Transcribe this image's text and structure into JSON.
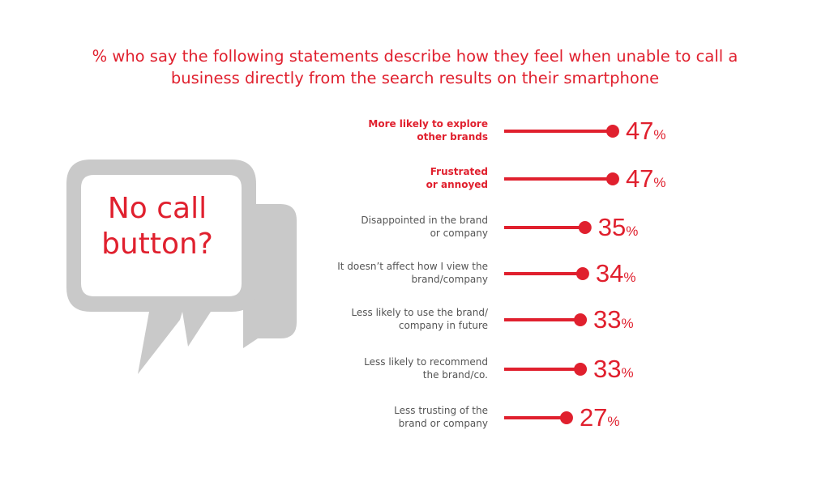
{
  "colors": {
    "accent": "#e0202e",
    "bubble": "#c9c9c9",
    "label": "#555555"
  },
  "title": {
    "line1": "% who say the following statements describe how they feel when unable to call a",
    "line2": "business directly from the search results on their smartphone"
  },
  "bubble": {
    "line1": "No call",
    "line2": "button?"
  },
  "chart_data": {
    "type": "bar",
    "title": "% who say the following statements describe how they feel when unable to call a business directly from the search results on their smartphone",
    "unit": "%",
    "ylim": [
      0,
      100
    ],
    "categories": [
      "More likely to explore other brands",
      "Frustrated or annoyed",
      "Disappointed in the brand or company",
      "It doesn’t affect how I view the brand/company",
      "Less likely to use the brand/ company in future",
      "Less likely to recommend the brand/co.",
      "Less trusting of the brand or company"
    ],
    "values": [
      47,
      47,
      35,
      34,
      33,
      33,
      27
    ],
    "rows": [
      {
        "label_lines": [
          "More likely to explore",
          "other brands"
        ],
        "value": 47,
        "value_label": "47",
        "unit_label": "%",
        "bold": true
      },
      {
        "label_lines": [
          "Frustrated",
          "or annoyed"
        ],
        "value": 47,
        "value_label": "47",
        "unit_label": "%",
        "bold": true
      },
      {
        "label_lines": [
          "Disappointed in the brand",
          "or company"
        ],
        "value": 35,
        "value_label": "35",
        "unit_label": "%",
        "bold": false
      },
      {
        "label_lines": [
          "It doesn’t affect how I view the",
          "brand/company"
        ],
        "value": 34,
        "value_label": "34",
        "unit_label": "%",
        "bold": false
      },
      {
        "label_lines": [
          "Less likely to use the brand/",
          "company in future"
        ],
        "value": 33,
        "value_label": "33",
        "unit_label": "%",
        "bold": false
      },
      {
        "label_lines": [
          "Less likely to recommend",
          "the brand/co."
        ],
        "value": 33,
        "value_label": "33",
        "unit_label": "%",
        "bold": false
      },
      {
        "label_lines": [
          "Less trusting of the",
          "brand or company"
        ],
        "value": 27,
        "value_label": "27",
        "unit_label": "%",
        "bold": false
      }
    ]
  }
}
